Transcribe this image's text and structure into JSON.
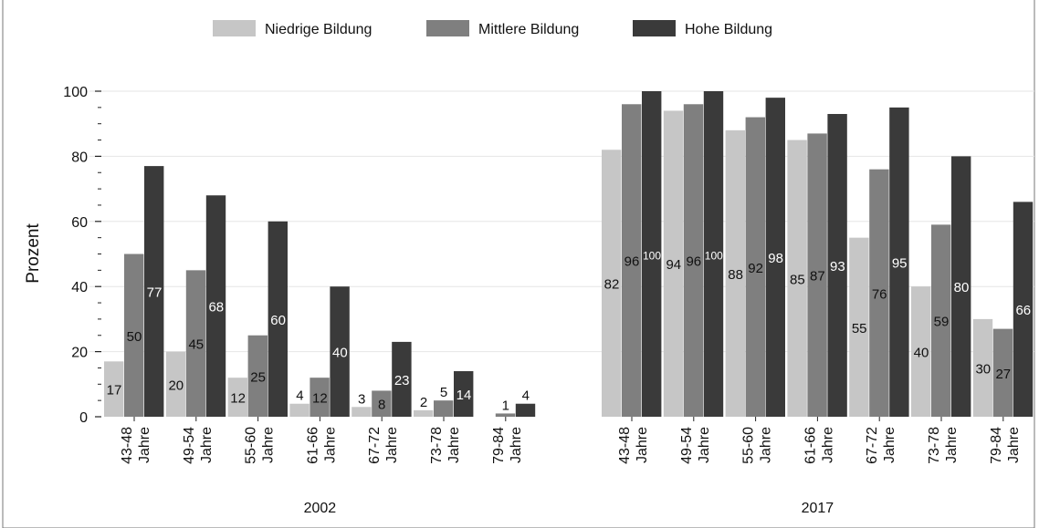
{
  "chart_data": {
    "type": "bar",
    "title": "",
    "ylabel": "Prozent",
    "ylim": [
      0,
      100
    ],
    "yticks": [
      0,
      20,
      40,
      60,
      80,
      100
    ],
    "grid": true,
    "legend_position": "top",
    "category_suffix": "Jahre",
    "series": [
      {
        "name": "Niedrige Bildung",
        "color": "#c6c6c6"
      },
      {
        "name": "Mittlere Bildung",
        "color": "#7f7f7f"
      },
      {
        "name": "Hohe Bildung",
        "color": "#3a3a3a"
      }
    ],
    "groups": [
      {
        "label": "2002",
        "categories": [
          "43-48",
          "49-54",
          "55-60",
          "61-66",
          "67-72",
          "73-78",
          "79-84"
        ],
        "values": [
          [
            17,
            20,
            12,
            4,
            3,
            2,
            0
          ],
          [
            50,
            45,
            25,
            12,
            8,
            5,
            1
          ],
          [
            77,
            68,
            60,
            40,
            23,
            14,
            4
          ]
        ],
        "labels": [
          [
            "17",
            "20",
            "12",
            "4",
            "3",
            "2",
            ""
          ],
          [
            "50",
            "45",
            "25",
            "12",
            "8",
            "5",
            "1"
          ],
          [
            "77",
            "68",
            "60",
            "40",
            "23",
            "14",
            "4"
          ]
        ]
      },
      {
        "label": "2017",
        "categories": [
          "43-48",
          "49-54",
          "55-60",
          "61-66",
          "67-72",
          "73-78",
          "79-84"
        ],
        "values": [
          [
            82,
            94,
            88,
            85,
            55,
            40,
            30
          ],
          [
            96,
            96,
            92,
            87,
            76,
            59,
            27
          ],
          [
            100,
            100,
            98,
            93,
            95,
            80,
            66
          ]
        ],
        "labels": [
          [
            "82",
            "94",
            "88",
            "85",
            "55",
            "40",
            "30"
          ],
          [
            "96",
            "96",
            "92",
            "87",
            "76",
            "59",
            "27"
          ],
          [
            "100",
            "100",
            "98",
            "93",
            "95",
            "80",
            "66"
          ]
        ]
      }
    ]
  }
}
